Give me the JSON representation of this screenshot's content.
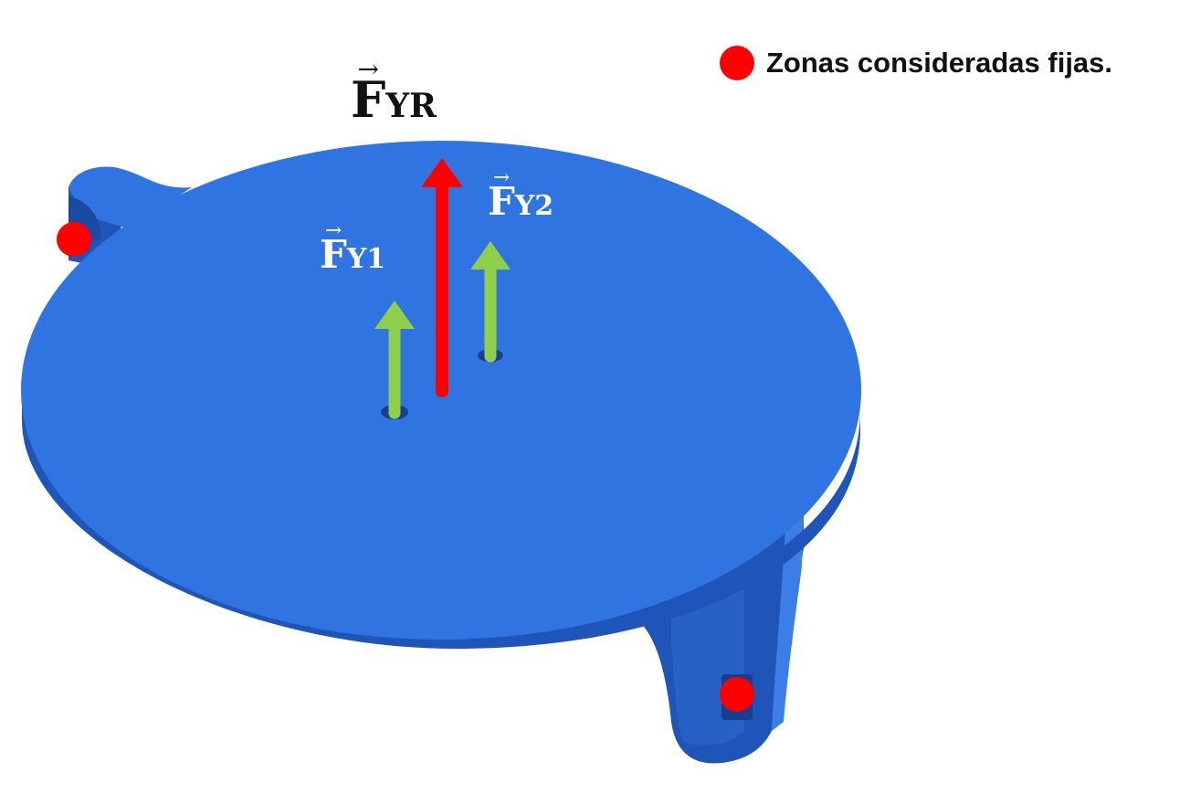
{
  "legend": {
    "label": "Zonas consideradas fijas.",
    "marker": "red-dot-icon"
  },
  "forces": {
    "resultant": {
      "main": "F",
      "sub": "YR",
      "vector_mark": "→"
    },
    "f1": {
      "main": "F",
      "sub": "Y1",
      "vector_mark": "→"
    },
    "f2": {
      "main": "F",
      "sub": "Y2",
      "vector_mark": "→"
    }
  },
  "colors": {
    "part": "#2f74e0",
    "part_dark": "#1f55b8",
    "resultant_arrow": "#ff0000",
    "component_arrow": "#8fcf4a",
    "fixed_zone": "#ff0000"
  }
}
